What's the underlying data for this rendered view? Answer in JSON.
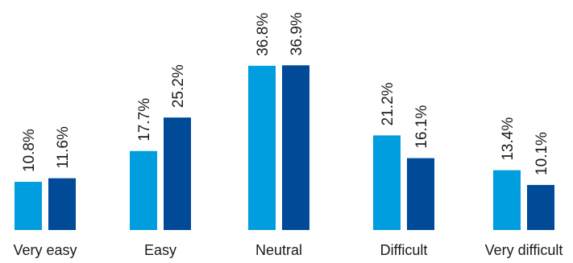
{
  "chart_data": {
    "type": "bar",
    "categories": [
      "Very easy",
      "Easy",
      "Neutral",
      "Difficult",
      "Very difficult"
    ],
    "series": [
      {
        "values": [
          10.8,
          17.7,
          36.8,
          21.2,
          13.4
        ],
        "labels": [
          "10.8%",
          "17.7%",
          "36.8%",
          "21.2%",
          "13.4%"
        ],
        "color": "#009ddf"
      },
      {
        "values": [
          11.6,
          25.2,
          36.9,
          16.1,
          10.1
        ],
        "labels": [
          "11.6%",
          "25.2%",
          "36.9%",
          "16.1%",
          "10.1%"
        ],
        "color": "#004a97"
      }
    ],
    "unit": "%",
    "ylim": [
      0,
      40
    ],
    "grid": false,
    "legend": "none"
  }
}
